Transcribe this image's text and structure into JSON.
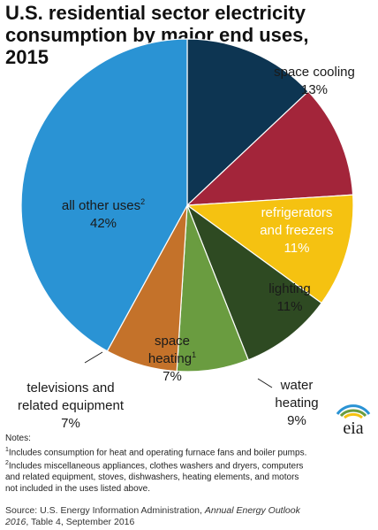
{
  "title_lines": [
    "U.S. residential sector electricity",
    "consumption by major end uses,",
    "2015"
  ],
  "colors": {
    "space_cooling": "#0d3552",
    "refrigerators": "#a3253a",
    "lighting": "#f5c211",
    "water_heating": "#2e4a22",
    "space_heating": "#6a9c40",
    "televisions": "#c4722a",
    "all_other": "#2a93d4"
  },
  "chart_data": {
    "type": "pie",
    "title": "U.S. residential sector electricity consumption by major end uses, 2015",
    "unit": "%",
    "start_angle_deg": 0,
    "direction": "clockwise",
    "slices": [
      {
        "key": "space_cooling",
        "label": [
          "space cooling"
        ],
        "value_label": "13%",
        "value": 13,
        "color": "#0d3552",
        "label_color": "#1a1a1a"
      },
      {
        "key": "refrigerators",
        "label": [
          "refrigerators",
          "and freezers"
        ],
        "value_label": "11%",
        "value": 11,
        "color": "#a3253a",
        "label_color": "#ffffff"
      },
      {
        "key": "lighting",
        "label": [
          "lighting"
        ],
        "value_label": "11%",
        "value": 11,
        "color": "#f5c211",
        "label_color": "#1a1a1a"
      },
      {
        "key": "water_heating",
        "label": [
          "water",
          "heating"
        ],
        "value_label": "9%",
        "value": 9,
        "color": "#2e4a22",
        "label_color": "#1a1a1a"
      },
      {
        "key": "space_heating",
        "label": [
          "space",
          "heating"
        ],
        "label_sup": "1",
        "value_label": "7%",
        "value": 7,
        "color": "#6a9c40",
        "label_color": "#1a1a1a"
      },
      {
        "key": "televisions",
        "label": [
          "televisions and",
          "related equipment"
        ],
        "value_label": "7%",
        "value": 7,
        "color": "#c4722a",
        "label_color": "#1a1a1a"
      },
      {
        "key": "all_other",
        "label": [
          "all other uses"
        ],
        "label_sup": "2",
        "value_label": "42%",
        "value": 42,
        "color": "#2a93d4",
        "label_color": "#1a1a1a"
      }
    ]
  },
  "notes": {
    "heading": "Notes:",
    "note1_sup": "1",
    "note1": "Includes consumption for heat and operating furnace fans and boiler pumps.",
    "note2_sup": "2",
    "note2_lines": [
      "Includes miscellaneous appliances, clothes washers and dryers, computers",
      "and related equipment, stoves, dishwashers, heating elements, and motors",
      "not included in the uses listed above."
    ]
  },
  "source": {
    "prefix": "Source: U.S. Energy Information Administration, ",
    "publication": "Annual Energy Outlook",
    "publication2": "2016",
    "suffix": ", Table 4, September 2016"
  },
  "logo": {
    "text": "eia",
    "icon": "eia-sun-logo",
    "colors": [
      "#2a93d4",
      "#6a9c40",
      "#f5c211"
    ]
  }
}
